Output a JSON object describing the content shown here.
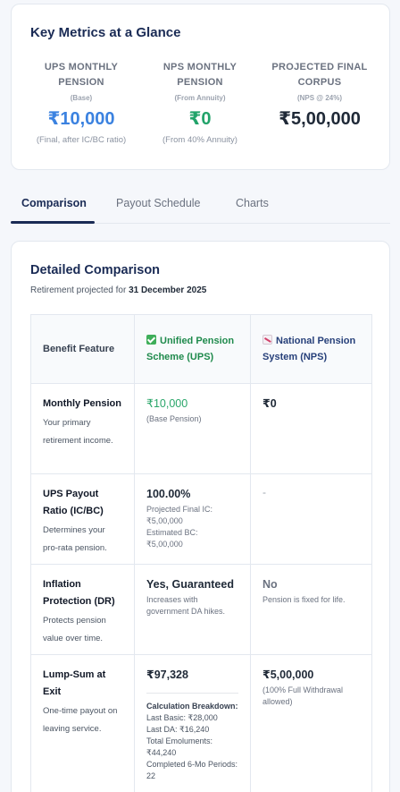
{
  "metrics": {
    "title": "Key Metrics at a Glance",
    "items": [
      {
        "label": "UPS MONTHLY PENSION",
        "sub": "(Base)",
        "value": "₹10,000",
        "note": "(Final, after IC/BC ratio)",
        "color": "#3b82e0"
      },
      {
        "label": "NPS MONTHLY PENSION",
        "sub": "(From Annuity)",
        "value": "₹0",
        "note": "(From 40% Annuity)",
        "color": "#22a36a"
      },
      {
        "label": "PROJECTED FINAL CORPUS",
        "sub": "(NPS @ 24%)",
        "value": "₹5,00,000",
        "note": "",
        "color": "#1f2937"
      }
    ]
  },
  "tabs": [
    {
      "label": "Comparison",
      "active": true
    },
    {
      "label": "Payout Schedule",
      "active": false
    },
    {
      "label": "Charts",
      "active": false
    }
  ],
  "comparison": {
    "title": "Detailed Comparison",
    "subtitle_prefix": "Retirement projected for",
    "retirement_date": "31 December 2025",
    "headers": {
      "feature": "Benefit Feature",
      "ups": "Unified Pension Scheme (UPS)",
      "nps": "National Pension System (NPS)"
    },
    "rows": [
      {
        "feature": "Monthly Pension",
        "desc": "Your primary retirement income.",
        "ups_value": "₹10,000",
        "ups_note": "(Base Pension)",
        "nps_value": "₹0",
        "nps_note": ""
      },
      {
        "feature": "UPS Payout Ratio (IC/BC)",
        "desc": "Determines your pro-rata pension.",
        "ups_value": "100.00%",
        "ups_note_lines": [
          "Projected Final IC:",
          "₹5,00,000",
          "Estimated BC:",
          "₹5,00,000"
        ],
        "nps_value": "-"
      },
      {
        "feature": "Inflation Protection (DR)",
        "desc": "Protects pension value over time.",
        "ups_value": "Yes, Guaranteed",
        "ups_note": "Increases with government DA hikes.",
        "nps_value": "No",
        "nps_note": "Pension is fixed for life."
      },
      {
        "feature": "Lump-Sum at Exit",
        "desc": "One-time payout on leaving service.",
        "ups_value": "₹97,328",
        "breakdown_title": "Calculation Breakdown:",
        "breakdown_lines": [
          "Last Basic: ₹28,000",
          "Last DA: ₹16,240",
          "Total Emoluments: ₹44,240",
          "Completed 6-Mo Periods: 22"
        ],
        "nps_value": "₹5,00,000",
        "nps_note": "(100% Full Withdrawal allowed)"
      }
    ]
  }
}
